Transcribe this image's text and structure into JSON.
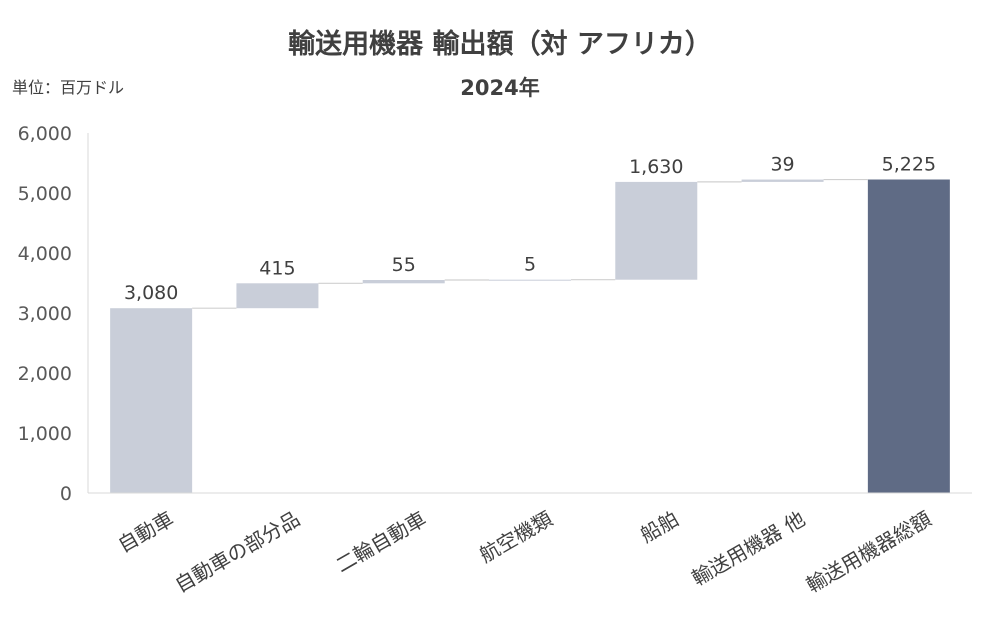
{
  "chart_data": {
    "type": "bar",
    "subtype": "waterfall",
    "title": "輸送用機器 輸出額（対 アフリカ）",
    "subtitle": "2024年",
    "unit_label": "単位：百万ドル",
    "xlabel": "",
    "ylabel": "",
    "ylim": [
      0,
      6000
    ],
    "yticks": [
      0,
      1000,
      2000,
      3000,
      4000,
      5000,
      6000
    ],
    "ytick_labels": [
      "0",
      "1,000",
      "2,000",
      "3,000",
      "4,000",
      "5,000",
      "6,000"
    ],
    "categories": [
      "自動車",
      "自動車の部分品",
      "二輪自動車",
      "航空機類",
      "船舶",
      "輸送用機器 他",
      "輸送用機器総額"
    ],
    "values": [
      3080,
      415,
      55,
      5,
      1630,
      39,
      5225
    ],
    "value_labels": [
      "3,080",
      "415",
      "55",
      "5",
      "1,630",
      "39",
      "5,225"
    ],
    "is_total": [
      false,
      false,
      false,
      false,
      false,
      false,
      true
    ],
    "grid": false,
    "legend": "none",
    "colors": {
      "increment": "#c9ced9",
      "total": "#5f6b85",
      "connector": "#d0d0d0",
      "axis": "#d9d9d9"
    }
  }
}
